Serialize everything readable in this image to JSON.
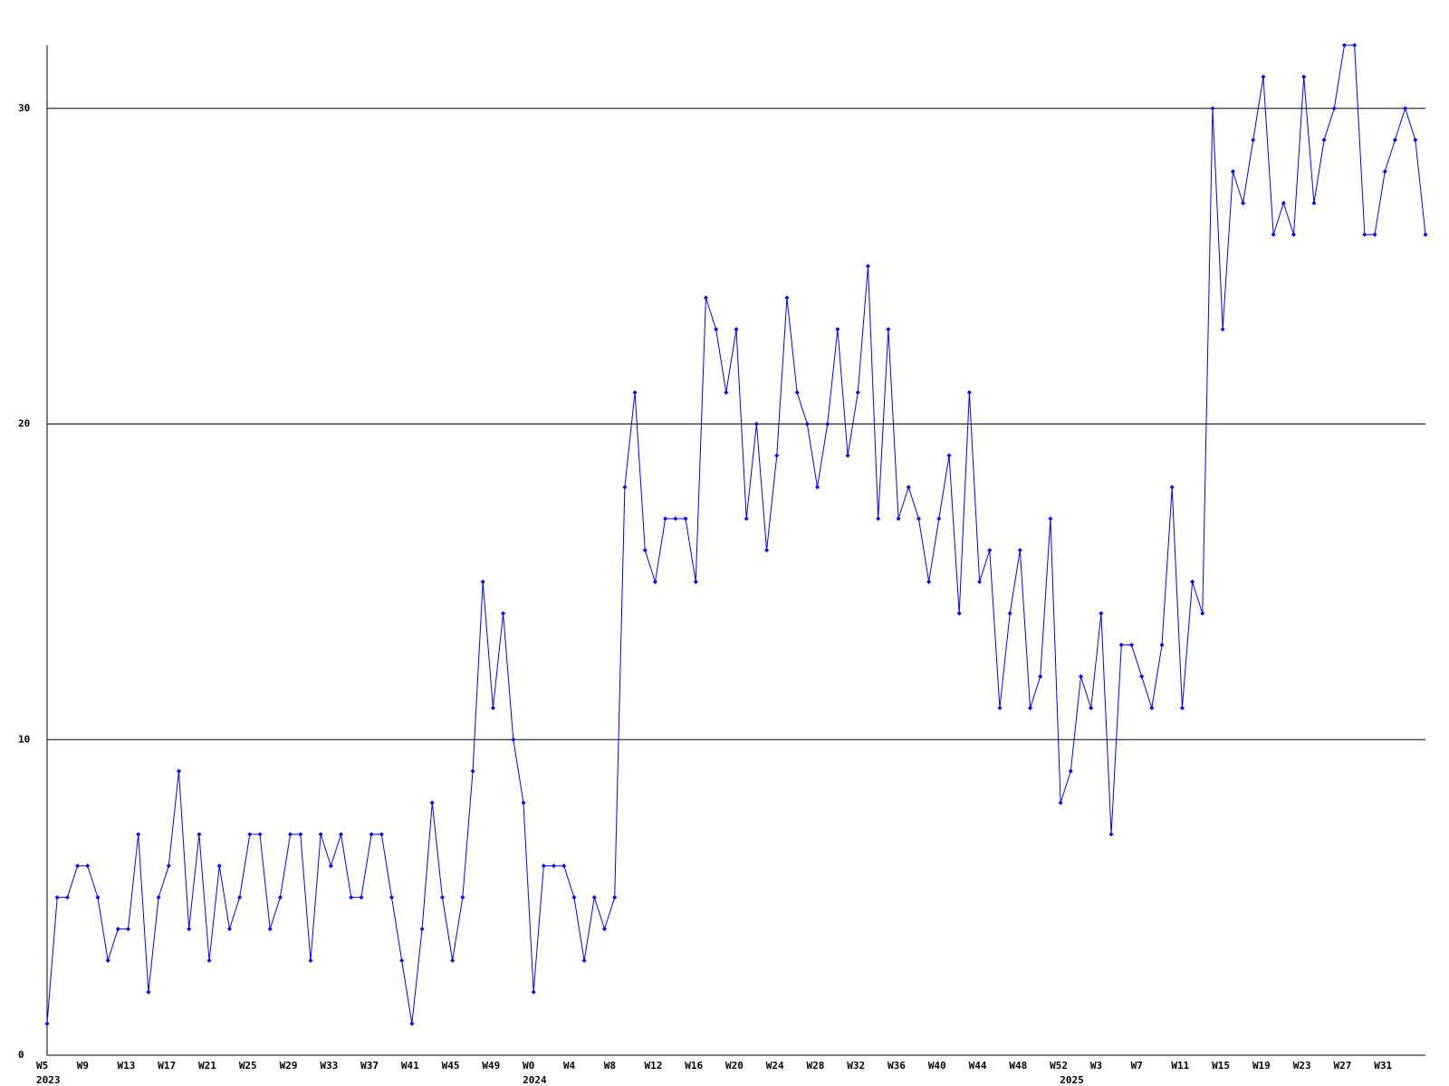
{
  "chart_data": {
    "type": "line",
    "categories": [
      "W5",
      null,
      null,
      null,
      "W9",
      null,
      null,
      null,
      "W13",
      null,
      null,
      null,
      "W17",
      null,
      null,
      null,
      "W21",
      null,
      null,
      null,
      "W25",
      null,
      null,
      null,
      "W29",
      null,
      null,
      null,
      "W33",
      null,
      null,
      null,
      "W37",
      null,
      null,
      null,
      "W41",
      null,
      null,
      null,
      "W45",
      null,
      null,
      null,
      "W49",
      null,
      null,
      null,
      "W0",
      null,
      null,
      null,
      "W4",
      null,
      null,
      null,
      "W8",
      null,
      null,
      null,
      "W12",
      null,
      null,
      null,
      "W16",
      null,
      null,
      null,
      "W20",
      null,
      null,
      null,
      "W24",
      null,
      null,
      null,
      "W28",
      null,
      null,
      null,
      "W32",
      null,
      null,
      null,
      "W36",
      null,
      null,
      null,
      "W40",
      null,
      null,
      null,
      "W44",
      null,
      null,
      null,
      "W48",
      null,
      null,
      null,
      "W52",
      null,
      null,
      null,
      "W3",
      null,
      null,
      null,
      "W7",
      null,
      null,
      null,
      "W11",
      null,
      null,
      null,
      "W15",
      null,
      null,
      null,
      "W19",
      null,
      null,
      null,
      "W23",
      null,
      null,
      null,
      "W27",
      null,
      null,
      null,
      "W31",
      null,
      null,
      null,
      null
    ],
    "year_labels": [
      "2023",
      null,
      null,
      null,
      null,
      null,
      null,
      null,
      null,
      null,
      null,
      null,
      null,
      null,
      null,
      null,
      null,
      null,
      null,
      null,
      null,
      null,
      null,
      null,
      null,
      null,
      null,
      null,
      null,
      null,
      null,
      null,
      null,
      null,
      null,
      null,
      null,
      null,
      null,
      null,
      null,
      null,
      null,
      null,
      null,
      null,
      null,
      null,
      "2024",
      null,
      null,
      null,
      null,
      null,
      null,
      null,
      null,
      null,
      null,
      null,
      null,
      null,
      null,
      null,
      null,
      null,
      null,
      null,
      null,
      null,
      null,
      null,
      null,
      null,
      null,
      null,
      null,
      null,
      null,
      null,
      null,
      null,
      null,
      null,
      null,
      null,
      null,
      null,
      null,
      null,
      null,
      null,
      null,
      null,
      null,
      null,
      null,
      null,
      null,
      null,
      null,
      "2025",
      null,
      null,
      null,
      null,
      null,
      null,
      null,
      null,
      null,
      null,
      null,
      null,
      null,
      null,
      null,
      null,
      null,
      null,
      null,
      null,
      null,
      null,
      null,
      null,
      null,
      null,
      null,
      null,
      null,
      null,
      null,
      null,
      null,
      null,
      null
    ],
    "values": [
      1,
      5,
      5,
      6,
      6,
      5,
      3,
      4,
      4,
      7,
      2,
      5,
      6,
      9,
      4,
      7,
      3,
      6,
      4,
      5,
      7,
      7,
      4,
      5,
      7,
      7,
      3,
      7,
      6,
      7,
      5,
      5,
      7,
      7,
      5,
      3,
      1,
      4,
      8,
      5,
      3,
      5,
      9,
      15,
      11,
      14,
      10,
      8,
      2,
      6,
      6,
      6,
      5,
      3,
      5,
      4,
      5,
      18,
      21,
      16,
      15,
      17,
      17,
      17,
      15,
      24,
      23,
      21,
      23,
      17,
      20,
      16,
      19,
      24,
      21,
      20,
      18,
      20,
      23,
      19,
      21,
      25,
      17,
      23,
      17,
      18,
      17,
      15,
      17,
      19,
      14,
      21,
      15,
      16,
      11,
      14,
      16,
      11,
      12,
      17,
      8,
      9,
      12,
      11,
      14,
      7,
      13,
      13,
      12,
      11,
      13,
      18,
      11,
      15,
      14,
      30,
      23,
      28,
      27,
      29,
      31,
      26,
      27,
      26,
      31,
      27,
      29,
      30,
      32,
      32,
      26,
      26,
      28,
      29,
      30,
      29,
      26
    ],
    "color": "#0000ff",
    "ylim": [
      0,
      32
    ],
    "yticks": [
      0,
      10,
      20,
      30
    ],
    "grid": true
  }
}
